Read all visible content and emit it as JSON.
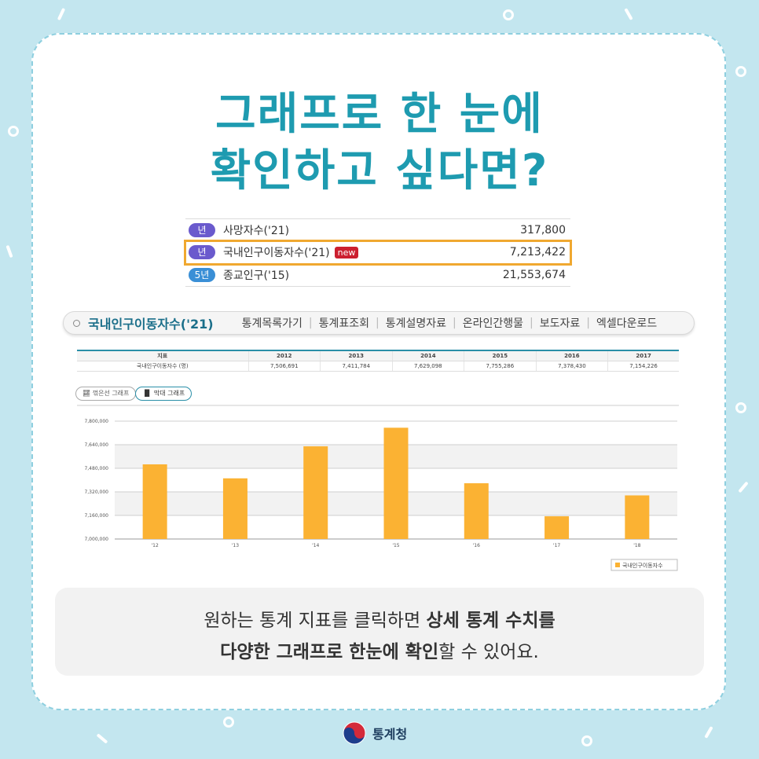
{
  "headline": {
    "line1": "그래프로 한 눈에",
    "line2": "확인하고 싶다면?"
  },
  "indicators": [
    {
      "badge": "년",
      "name": "사망자수('21)",
      "value": "317,800",
      "new": "",
      "highlight": false
    },
    {
      "badge": "년",
      "name": "국내인구이동자수('21)",
      "value": "7,213,422",
      "new": "new",
      "highlight": true
    },
    {
      "badge": "5년",
      "name": "종교인구('15)",
      "value": "21,553,674",
      "new": "",
      "highlight": false
    }
  ],
  "tabbar": {
    "title": "국내인구이동자수('21)",
    "links": [
      "통계목록가기",
      "통계표조회",
      "통계설명자료",
      "온라인간행물",
      "보도자료",
      "엑셀다운로드"
    ]
  },
  "table": {
    "header": [
      "지표",
      "2012",
      "2013",
      "2014",
      "2015",
      "2016",
      "2017"
    ],
    "row": [
      "국내인구이동자수 (명)",
      "7,506,691",
      "7,411,784",
      "7,629,098",
      "7,755,286",
      "7,378,430",
      "7,154,226"
    ]
  },
  "graph_buttons": {
    "line": "꺾은선 그래프",
    "bar": "막대 그래프"
  },
  "chart_data": {
    "type": "bar",
    "categories": [
      "'12",
      "'13",
      "'14",
      "'15",
      "'16",
      "'17",
      "'18"
    ],
    "series": [
      {
        "name": "국내인구이동자수",
        "values": [
          7506691,
          7411784,
          7629098,
          7755286,
          7378430,
          7154226,
          7296000
        ]
      }
    ],
    "yticks": [
      "7,000,000",
      "7,160,000",
      "7,320,000",
      "7,480,000",
      "7,640,000",
      "7,800,000"
    ],
    "ylim": [
      7000000,
      7800000
    ],
    "grid": true,
    "legend": "bottom-right",
    "color": "#fbb233"
  },
  "note": {
    "line1_pre": "원하는 통계 지표를 클릭하면 ",
    "line1_bold": "상세 통계 수치를",
    "line2_bold": "다양한 그래프로 한눈에 확인",
    "line2_post": "할 수 있어요."
  },
  "logo": {
    "text": "통계청"
  },
  "colors": {
    "background": "#c3e6ef",
    "headline": "#1e9bb0",
    "highlight": "#f0a830",
    "bar": "#fbb233"
  }
}
